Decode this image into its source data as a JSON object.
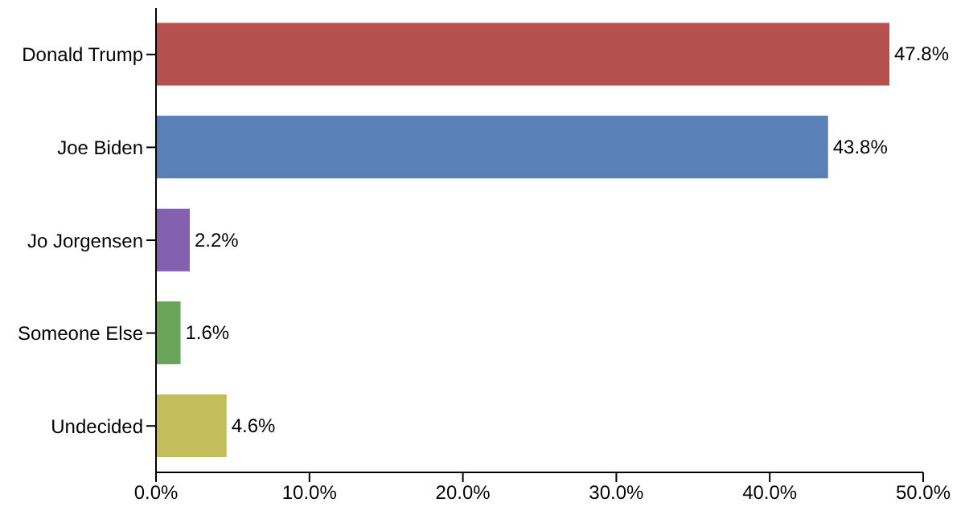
{
  "chart_data": {
    "type": "bar",
    "orientation": "horizontal",
    "categories": [
      "Donald Trump",
      "Joe Biden",
      "Jo Jorgensen",
      "Someone Else",
      "Undecided"
    ],
    "values": [
      47.8,
      43.8,
      2.2,
      1.6,
      4.6
    ],
    "colors": [
      "#b5504e",
      "#5a80b8",
      "#8560b0",
      "#69a45a",
      "#c3bd5c"
    ],
    "value_labels": [
      "47.8%",
      "43.8%",
      "2.2%",
      "1.6%",
      "4.6%"
    ],
    "xlim": [
      0,
      50
    ],
    "xticks": [
      {
        "value": 0,
        "label": "0.0%"
      },
      {
        "value": 10,
        "label": "10.0%"
      },
      {
        "value": 20,
        "label": "20.0%"
      },
      {
        "value": 30,
        "label": "30.0%"
      },
      {
        "value": 40,
        "label": "40.0%"
      },
      {
        "value": 50,
        "label": "50.0%"
      }
    ],
    "grid": false,
    "legend": false
  }
}
